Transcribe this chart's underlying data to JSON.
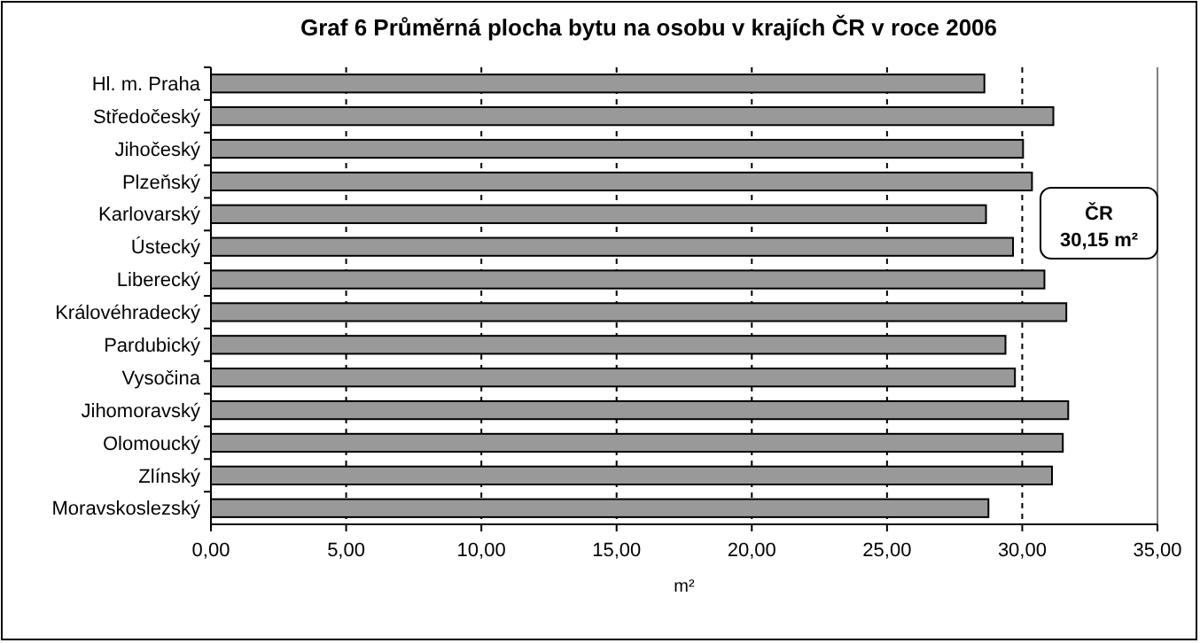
{
  "chart_data": {
    "type": "bar",
    "orientation": "horizontal",
    "title": "Graf 6 Průměrná plocha bytu na osobu v krajích ČR v roce 2006",
    "xlabel": "m²",
    "categories": [
      "Hl. m. Praha",
      "Středočeský",
      "Jihočeský",
      "Plzeňský",
      "Karlovarský",
      "Ústecký",
      "Liberecký",
      "Královéhradecký",
      "Pardubický",
      "Vysočina",
      "Jihomoravský",
      "Olomoucký",
      "Zlínský",
      "Moravskoslezský"
    ],
    "values": [
      28.6,
      31.15,
      30.03,
      30.36,
      28.66,
      29.66,
      30.82,
      31.63,
      29.38,
      29.73,
      31.7,
      31.5,
      31.1,
      28.75
    ],
    "color": "#999999",
    "xlim": [
      0,
      35
    ],
    "xticks": [
      {
        "value": 0,
        "label": "0,00"
      },
      {
        "value": 5,
        "label": "5,00"
      },
      {
        "value": 10,
        "label": "10,00"
      },
      {
        "value": 15,
        "label": "15,00"
      },
      {
        "value": 20,
        "label": "20,00"
      },
      {
        "value": 25,
        "label": "25,00"
      },
      {
        "value": 30,
        "label": "30,00"
      },
      {
        "value": 35,
        "label": "35,00"
      }
    ],
    "grid": "x",
    "annotations": [
      "ČR\n30,15 m²"
    ]
  }
}
